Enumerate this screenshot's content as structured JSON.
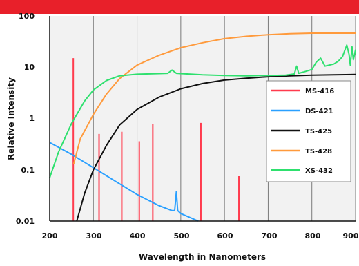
{
  "chart_data": {
    "type": "line",
    "xlabel": "Wavelength in Nanometers",
    "ylabel": "Relative Intensity",
    "xlim": [
      200,
      900
    ],
    "ylim": [
      0.01,
      100
    ],
    "yscale": "log",
    "grid": "vertical",
    "legend_position": "right",
    "x_ticks": [
      "200",
      "300",
      "400",
      "500",
      "600",
      "700",
      "800",
      "900"
    ],
    "y_ticks": [
      "0.01",
      "0.1",
      "1",
      "10",
      "100"
    ],
    "series": [
      {
        "name": "MS-416",
        "color": "#ff3b4e",
        "style": "spikes",
        "x": [
          254,
          313,
          365,
          405,
          436,
          546,
          633
        ],
        "y": [
          15,
          0.5,
          0.55,
          0.36,
          0.78,
          0.82,
          0.075
        ]
      },
      {
        "name": "DS-421",
        "color": "#2aa0ff",
        "style": "line",
        "x": [
          200,
          250,
          300,
          350,
          400,
          450,
          480,
          486,
          490,
          493,
          500,
          540
        ],
        "y": [
          0.34,
          0.2,
          0.11,
          0.06,
          0.033,
          0.02,
          0.016,
          0.016,
          0.038,
          0.016,
          0.014,
          0.01
        ]
      },
      {
        "name": "TS-425",
        "color": "#111111",
        "style": "line",
        "x": [
          262,
          280,
          300,
          330,
          360,
          400,
          450,
          500,
          550,
          600,
          650,
          700,
          750,
          800,
          850,
          900
        ],
        "y": [
          0.01,
          0.035,
          0.1,
          0.3,
          0.75,
          1.5,
          2.6,
          3.8,
          4.8,
          5.6,
          6.1,
          6.5,
          6.8,
          7.0,
          7.1,
          7.2
        ]
      },
      {
        "name": "TS-428",
        "color": "#ff9a3c",
        "style": "line",
        "x": [
          255,
          270,
          300,
          330,
          360,
          400,
          450,
          500,
          550,
          600,
          650,
          700,
          750,
          800,
          850,
          900
        ],
        "y": [
          0.13,
          0.4,
          1.2,
          3.0,
          6.0,
          11,
          17,
          24,
          30,
          36,
          40,
          43,
          45,
          46,
          46,
          46
        ]
      },
      {
        "name": "XS-432",
        "color": "#2ee06e",
        "style": "line",
        "x": [
          200,
          220,
          250,
          280,
          300,
          330,
          360,
          400,
          450,
          470,
          480,
          490,
          500,
          550,
          600,
          650,
          700,
          740,
          760,
          765,
          770,
          780,
          800,
          810,
          820,
          830,
          850,
          860,
          870,
          880,
          885,
          888,
          892,
          895,
          900
        ],
        "y": [
          0.07,
          0.22,
          0.8,
          2.2,
          3.6,
          5.5,
          6.8,
          7.3,
          7.5,
          7.6,
          8.8,
          7.6,
          7.5,
          7.1,
          6.9,
          6.8,
          6.9,
          7.0,
          7.4,
          10.5,
          7.6,
          8.0,
          9.0,
          12.5,
          15,
          10.5,
          11.5,
          13,
          16,
          27,
          18,
          11,
          25,
          14,
          22
        ]
      }
    ]
  }
}
